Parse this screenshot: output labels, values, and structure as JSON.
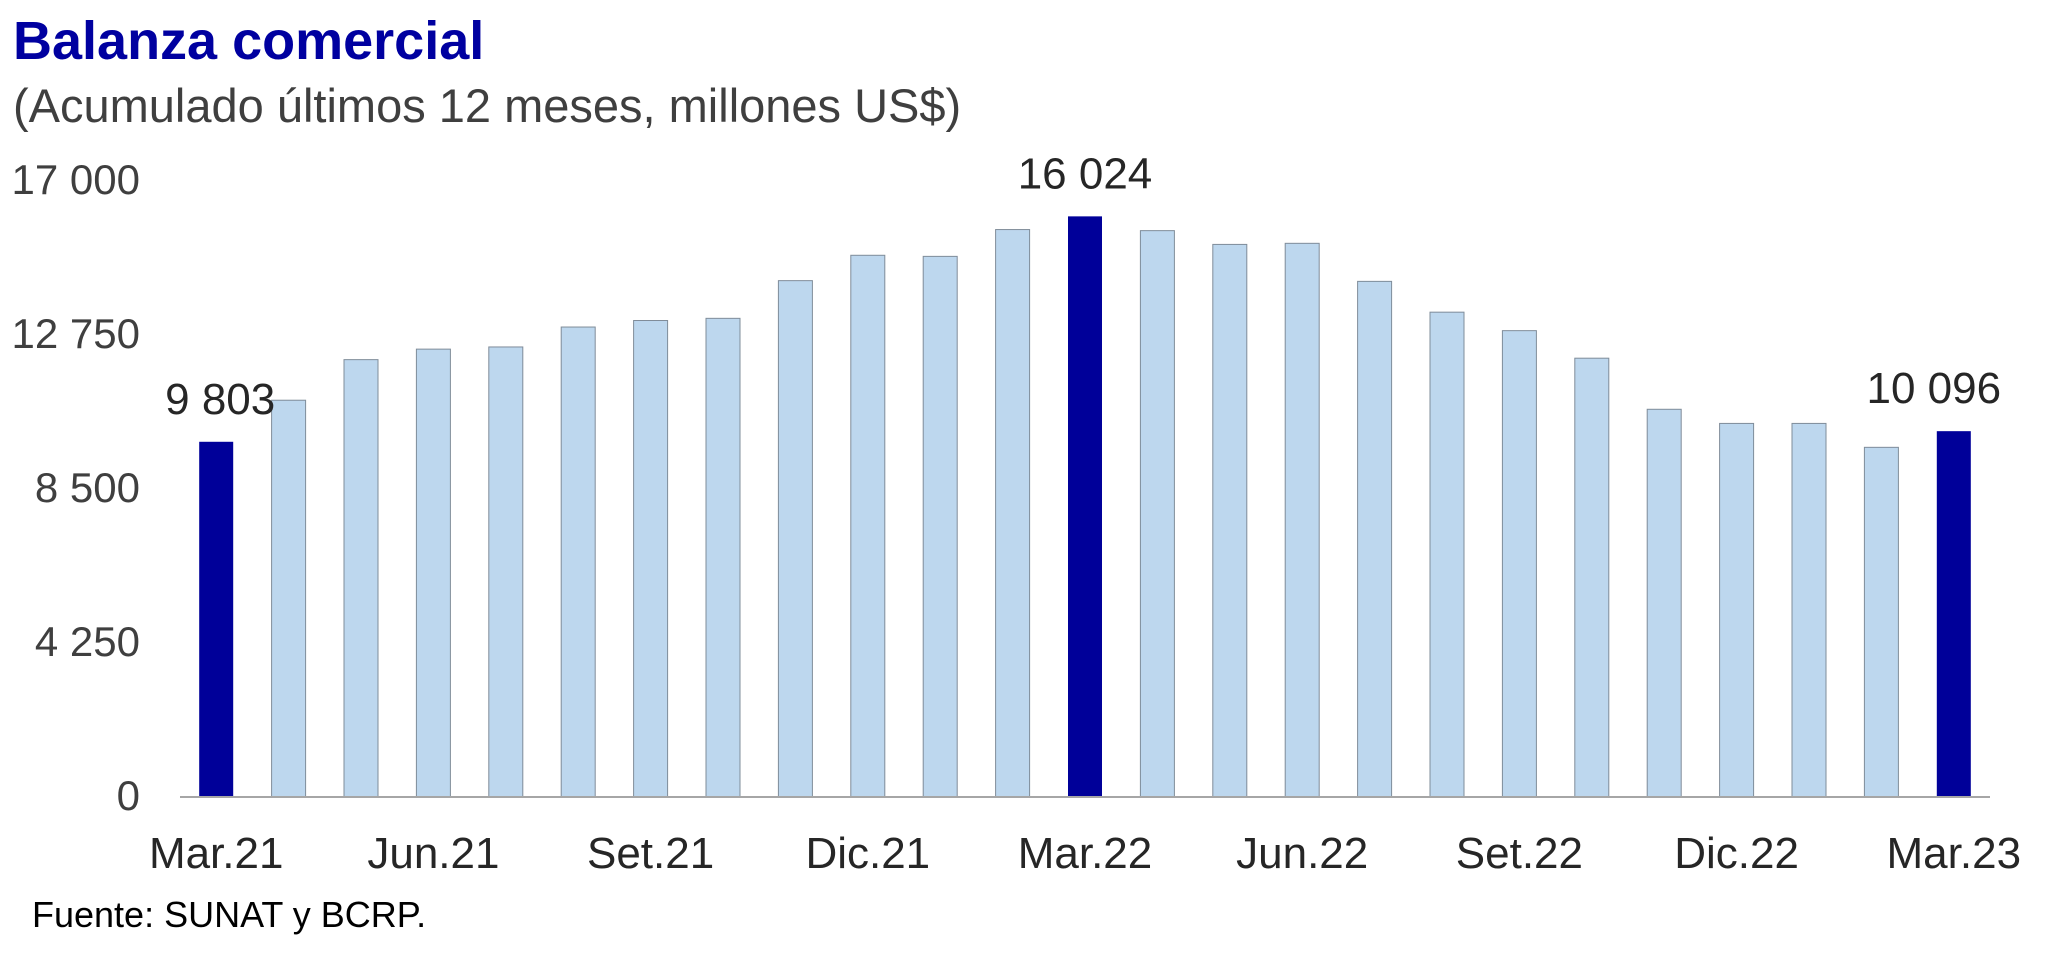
{
  "chart_data": {
    "type": "bar",
    "title": "Balanza comercial",
    "subtitle": "(Acumulado últimos 12 meses, millones US$)",
    "source": "Fuente: SUNAT y BCRP.",
    "categories": [
      "Mar.21",
      "Abr.21",
      "May.21",
      "Jun.21",
      "Jul.21",
      "Ago.21",
      "Set.21",
      "Oct.21",
      "Nov.21",
      "Dic.21",
      "Ene.22",
      "Feb.22",
      "Mar.22",
      "Abr.22",
      "May.22",
      "Jun.22",
      "Jul.22",
      "Ago.22",
      "Set.22",
      "Oct.22",
      "Nov.22",
      "Dic.22",
      "Ene.23",
      "Feb.23",
      "Mar.23"
    ],
    "x_tick_labels": [
      "Mar.21",
      "Jun.21",
      "Set.21",
      "Dic.21",
      "Mar.22",
      "Jun.22",
      "Set.22",
      "Dic.22",
      "Mar.23"
    ],
    "values": [
      9803,
      10950,
      12070,
      12360,
      12420,
      12970,
      13150,
      13210,
      14250,
      14950,
      14920,
      15660,
      16024,
      15630,
      15250,
      15280,
      14230,
      13380,
      12870,
      12110,
      10700,
      10310,
      10310,
      9650,
      10096
    ],
    "highlighted": [
      "Mar.21",
      "Mar.22",
      "Mar.23"
    ],
    "data_labels": [
      {
        "category": "Mar.21",
        "text": "9 803"
      },
      {
        "category": "Mar.22",
        "text": "16 024"
      },
      {
        "category": "Mar.23",
        "text": "10 096"
      }
    ],
    "ylim": [
      0,
      17000
    ],
    "yticks": [
      0,
      4250,
      8500,
      12750,
      17000
    ],
    "ytick_labels": [
      "0",
      "4 250",
      "8 500",
      "12 750",
      "17 000"
    ],
    "xlabel": "",
    "ylabel": "",
    "grid": false,
    "colors": {
      "bar": "#bdd7ee",
      "bar_border": "#7f8c99",
      "highlight": "#000099",
      "title": "#0000a0",
      "axis_text": "#3f3f3f",
      "axis_line": "#a6a6a6"
    }
  }
}
